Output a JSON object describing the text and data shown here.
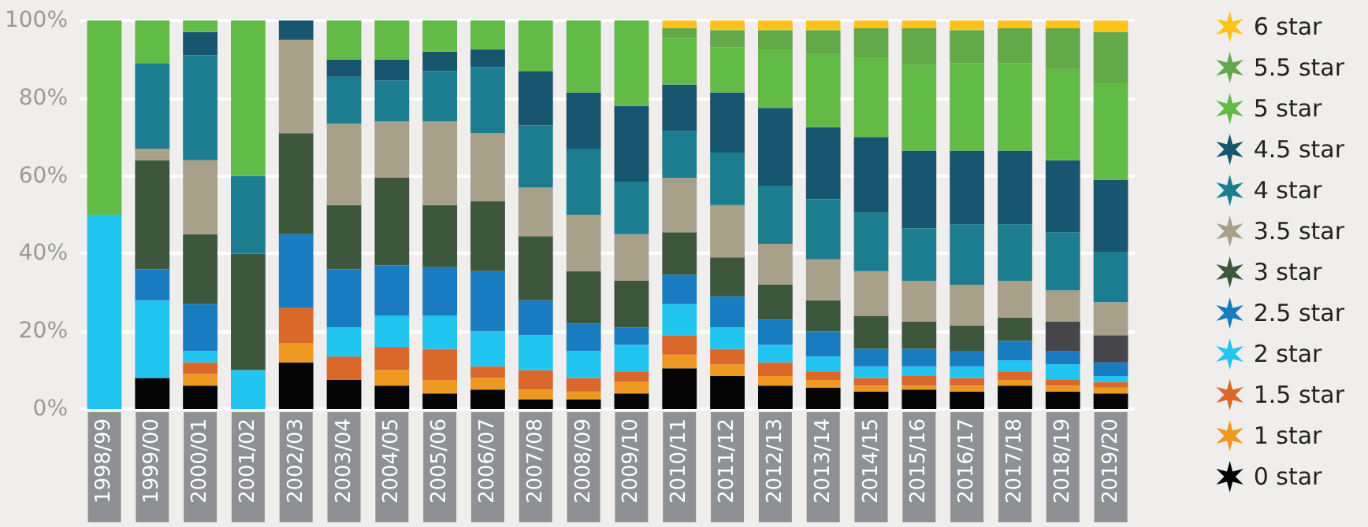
{
  "chart_data": {
    "type": "bar",
    "stacked": true,
    "grid": "y",
    "legend": "right",
    "categories": [
      "1998/99",
      "1999/00",
      "2000/01",
      "2001/02",
      "2002/03",
      "2003/04",
      "2004/05",
      "2005/06",
      "2006/07",
      "2007/08",
      "2008/09",
      "2009/10",
      "2010/11",
      "2011/12",
      "2012/13",
      "2013/14",
      "2014/15",
      "2015/16",
      "2016/17",
      "2017/18",
      "2018/19",
      "2019/20"
    ],
    "ylim": [
      0,
      100
    ],
    "yticks": [
      {
        "value": 0,
        "label": "0%"
      },
      {
        "value": 20,
        "label": "20%"
      },
      {
        "value": 40,
        "label": "40%"
      },
      {
        "value": 60,
        "label": "60%"
      },
      {
        "value": 80,
        "label": "80%"
      },
      {
        "value": 100,
        "label": "100%"
      }
    ],
    "series": [
      {
        "name": "0 star",
        "color": "#050505",
        "values": [
          null,
          8,
          6,
          null,
          12,
          7.5,
          6,
          4,
          5,
          2.5,
          2.5,
          4,
          10.5,
          8.5,
          6,
          5.5,
          4.5,
          5,
          4.5,
          6,
          4.5,
          4
        ]
      },
      {
        "name": "1 star",
        "color": "#ee9a22",
        "values": [
          null,
          null,
          3,
          null,
          5,
          null,
          4,
          3.5,
          3,
          2.5,
          2,
          3,
          3.5,
          3,
          2.5,
          2,
          1.5,
          1,
          1.5,
          1.5,
          1.5,
          1.5
        ]
      },
      {
        "name": "1.5 star",
        "color": "#d9682a",
        "values": [
          null,
          null,
          3,
          null,
          9,
          6,
          6,
          8,
          3,
          5,
          3.5,
          2.5,
          5,
          4,
          3.5,
          2,
          2,
          2.5,
          2,
          2,
          1.5,
          1.5
        ]
      },
      {
        "name": "2 star",
        "color": "#22c4f0",
        "values": [
          50,
          20,
          3,
          10,
          null,
          7.5,
          8,
          8.5,
          9,
          9,
          7,
          7,
          8,
          5.5,
          4.5,
          4,
          3,
          2.5,
          3,
          3,
          4,
          1.5
        ]
      },
      {
        "name": "2.5 star",
        "color": "#1a7cc0",
        "values": [
          null,
          8,
          12,
          null,
          19,
          15,
          13,
          12.5,
          15.5,
          9,
          7,
          4.5,
          7.5,
          8,
          6.5,
          6.5,
          4.5,
          4.5,
          4,
          5,
          3.5,
          3.5
        ]
      },
      {
        "name": "3 star",
        "color": "#3d573d",
        "values": [
          null,
          28,
          18,
          30,
          26,
          16.5,
          22.5,
          16,
          18,
          16.5,
          13.5,
          12,
          11,
          10,
          9,
          8,
          8.5,
          7,
          6.5,
          6,
          7.5,
          7
        ],
        "colors": [
          "#3d573d",
          "#3d573d",
          "#3d573d",
          "#3d573d",
          "#3d573d",
          "#3d573d",
          "#3d573d",
          "#3d573d",
          "#3d573d",
          "#3d573d",
          "#3d573d",
          "#3d573d",
          "#3d573d",
          "#3d573d",
          "#3d573d",
          "#3d573d",
          "#3d573d",
          "#3d573d",
          "#3d573d",
          "#3d573d",
          "#45454a",
          "#45454a"
        ]
      },
      {
        "name": "3.5 star",
        "color": "#a9a08a",
        "values": [
          null,
          3,
          19,
          null,
          24,
          21,
          14.5,
          21.5,
          17.5,
          12.5,
          14.5,
          12,
          14,
          13.5,
          10.5,
          10.5,
          11.5,
          10.5,
          10.5,
          9.5,
          8,
          8.5
        ]
      },
      {
        "name": "4 star",
        "color": "#1d7d90",
        "values": [
          null,
          22,
          27,
          20,
          null,
          12,
          10.5,
          13,
          17,
          16,
          17,
          13.5,
          12,
          13.5,
          15,
          15.5,
          15,
          13.5,
          15.5,
          14.5,
          15,
          13
        ]
      },
      {
        "name": "4.5 star",
        "color": "#17566e",
        "values": [
          null,
          null,
          6,
          null,
          5,
          4.5,
          5.5,
          5,
          4.5,
          14,
          14.5,
          19.5,
          12,
          15.5,
          20,
          18.5,
          19.5,
          20,
          19,
          19,
          18.5,
          18.5
        ]
      },
      {
        "name": "5 star",
        "color": "#62bb46",
        "values": [
          50,
          11,
          3,
          40,
          null,
          10,
          10,
          8,
          7.5,
          13,
          18.5,
          22,
          12,
          11.5,
          15,
          19,
          20.5,
          22,
          22.5,
          22.5,
          23.5,
          25
        ]
      },
      {
        "name": "5.5 star",
        "color": "#63a94a",
        "values": [
          null,
          null,
          null,
          null,
          null,
          null,
          null,
          null,
          null,
          null,
          null,
          null,
          2.5,
          4.5,
          5,
          6,
          7.5,
          9.5,
          8.5,
          9,
          10.5,
          13
        ]
      },
      {
        "name": "6 star",
        "color": "#ffc217",
        "values": [
          null,
          null,
          null,
          null,
          null,
          null,
          null,
          null,
          null,
          null,
          null,
          null,
          2,
          2.5,
          2.5,
          2.5,
          2,
          2,
          2.5,
          2,
          2,
          3
        ]
      }
    ]
  }
}
